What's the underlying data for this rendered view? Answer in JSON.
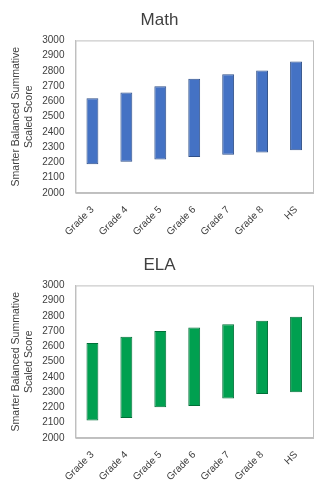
{
  "chart_data": [
    {
      "type": "bar",
      "title": "Math",
      "y_label": [
        "Smarter Balanced Summative",
        "Scaled Score"
      ],
      "categories": [
        "Grade 3",
        "Grade 4",
        "Grade 5",
        "Grade 6",
        "Grade 7",
        "Grade 8",
        "HS"
      ],
      "low": [
        2189,
        2204,
        2219,
        2235,
        2250,
        2265,
        2280
      ],
      "high": [
        2621,
        2659,
        2700,
        2748,
        2778,
        2802,
        2862
      ],
      "color": "#4472c4",
      "ylim": [
        2000,
        3000
      ],
      "yticks": [
        2000,
        2100,
        2200,
        2300,
        2400,
        2500,
        2600,
        2700,
        2800,
        2900,
        3000
      ],
      "grid": false
    },
    {
      "type": "bar",
      "title": "ELA",
      "y_label": [
        "Smarter Balanced Summative",
        "Scaled Score"
      ],
      "categories": [
        "Grade 3",
        "Grade 4",
        "Grade 5",
        "Grade 6",
        "Grade 7",
        "Grade 8",
        "HS"
      ],
      "low": [
        2114,
        2131,
        2201,
        2210,
        2258,
        2288,
        2299
      ],
      "high": [
        2623,
        2663,
        2701,
        2724,
        2745,
        2769,
        2795
      ],
      "color": "#00a050",
      "ylim": [
        2000,
        3000
      ],
      "yticks": [
        2000,
        2100,
        2200,
        2300,
        2400,
        2500,
        2600,
        2700,
        2800,
        2900,
        3000
      ],
      "grid": false
    }
  ]
}
